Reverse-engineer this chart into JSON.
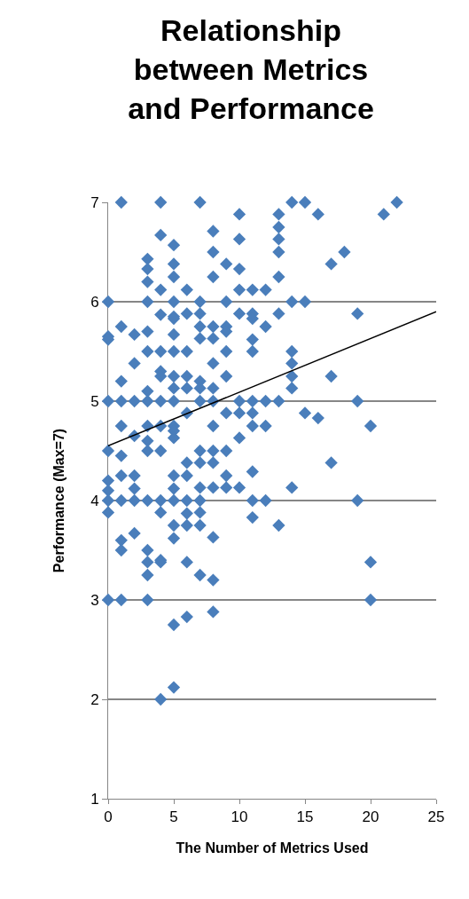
{
  "chart_data": {
    "type": "scatter",
    "title": "Relationship between Metrics and Performance",
    "xlabel": "The Number of Metrics Used",
    "ylabel": "Performance (Max=7)",
    "xlim": [
      0,
      25
    ],
    "xticks": [
      0,
      5,
      10,
      15,
      20,
      25
    ],
    "ylim": [
      1,
      7
    ],
    "yticks": [
      1,
      2,
      3,
      4,
      5,
      6,
      7
    ],
    "grid": "y",
    "legend": false,
    "marker": "diamond",
    "series": [
      {
        "color": "#4a7ebb",
        "x": [
          0,
          0,
          0,
          0,
          0,
          0,
          0,
          0,
          0,
          0,
          1,
          1,
          1,
          1,
          1,
          1,
          1,
          1,
          1,
          1,
          1,
          2,
          2,
          2,
          2,
          2,
          2,
          2,
          2,
          3,
          3,
          3,
          3,
          3,
          3,
          3,
          3,
          3,
          3,
          3,
          3,
          3,
          3,
          3,
          3,
          4,
          4,
          4,
          4,
          4,
          4,
          4,
          4,
          4,
          4,
          4,
          4,
          4,
          4,
          4,
          5,
          5,
          5,
          5,
          5,
          5,
          5,
          5,
          5,
          5,
          5,
          5,
          5,
          5,
          5,
          5,
          5,
          5,
          5,
          5,
          5,
          6,
          6,
          6,
          6,
          6,
          6,
          6,
          6,
          6,
          6,
          6,
          6,
          6,
          7,
          7,
          7,
          7,
          7,
          7,
          7,
          7,
          7,
          7,
          7,
          7,
          7,
          7,
          7,
          8,
          8,
          8,
          8,
          8,
          8,
          8,
          8,
          8,
          8,
          8,
          8,
          8,
          8,
          8,
          9,
          9,
          9,
          9,
          9,
          9,
          9,
          9,
          9,
          9,
          10,
          10,
          10,
          10,
          10,
          10,
          10,
          10,
          10,
          11,
          11,
          11,
          11,
          11,
          11,
          11,
          11,
          11,
          11,
          11,
          12,
          12,
          12,
          12,
          12,
          13,
          13,
          13,
          13,
          13,
          13,
          13,
          13,
          14,
          14,
          14,
          14,
          14,
          14,
          14,
          15,
          15,
          15,
          16,
          16,
          17,
          17,
          17,
          18,
          19,
          19,
          19,
          20,
          20,
          20,
          21,
          22
        ],
        "values": [
          6.0,
          5.65,
          5.62,
          5.0,
          4.5,
          4.2,
          4.1,
          4.0,
          3.88,
          3.0,
          7.0,
          5.75,
          5.2,
          5.0,
          4.75,
          4.45,
          4.25,
          4.0,
          3.6,
          3.5,
          3.0,
          5.67,
          5.38,
          5.0,
          4.65,
          4.25,
          4.12,
          4.0,
          3.67,
          6.43,
          6.33,
          6.2,
          6.0,
          5.7,
          5.5,
          5.1,
          5.0,
          4.75,
          4.6,
          4.5,
          4.0,
          3.5,
          3.38,
          3.25,
          3.0,
          7.0,
          6.67,
          6.12,
          5.87,
          5.5,
          5.3,
          5.25,
          5.0,
          4.75,
          4.5,
          4.0,
          3.88,
          3.4,
          3.38,
          2.0,
          6.57,
          6.38,
          6.25,
          6.0,
          5.85,
          5.83,
          5.67,
          5.5,
          5.25,
          5.13,
          5.0,
          4.75,
          4.7,
          4.63,
          4.25,
          4.12,
          4.0,
          3.75,
          3.62,
          2.75,
          2.12,
          6.12,
          5.88,
          5.5,
          5.25,
          5.13,
          4.88,
          4.38,
          4.25,
          4.0,
          3.87,
          3.75,
          3.38,
          2.83,
          7.0,
          6.0,
          5.88,
          5.75,
          5.63,
          5.2,
          5.13,
          5.0,
          4.5,
          4.38,
          4.13,
          4.0,
          3.88,
          3.75,
          3.25,
          6.71,
          6.5,
          6.25,
          5.75,
          5.63,
          5.38,
          5.13,
          5.0,
          4.75,
          4.5,
          4.38,
          4.13,
          3.63,
          3.2,
          2.88,
          6.38,
          6.0,
          5.75,
          5.7,
          5.5,
          5.25,
          4.88,
          4.5,
          4.25,
          4.13,
          6.88,
          6.63,
          6.33,
          6.12,
          5.88,
          5.0,
          4.88,
          4.63,
          4.13,
          6.12,
          5.88,
          5.83,
          5.62,
          5.5,
          5.0,
          4.88,
          4.75,
          4.29,
          4.0,
          3.83,
          6.12,
          5.75,
          5.0,
          4.75,
          4.0,
          6.88,
          6.75,
          6.63,
          6.5,
          6.25,
          5.88,
          5.0,
          3.75,
          7.0,
          6.0,
          5.5,
          5.38,
          5.25,
          5.13,
          4.13,
          7.0,
          6.0,
          4.88,
          6.88,
          4.83,
          6.38,
          5.25,
          4.38,
          6.5,
          5.88,
          5.0,
          4.0,
          4.75,
          3.38,
          3.0,
          6.88,
          7.0
        ]
      },
      {
        "type": "line",
        "color": "#000000",
        "x": [
          0,
          25
        ],
        "values": [
          4.55,
          5.9
        ],
        "marker": "none"
      }
    ]
  }
}
